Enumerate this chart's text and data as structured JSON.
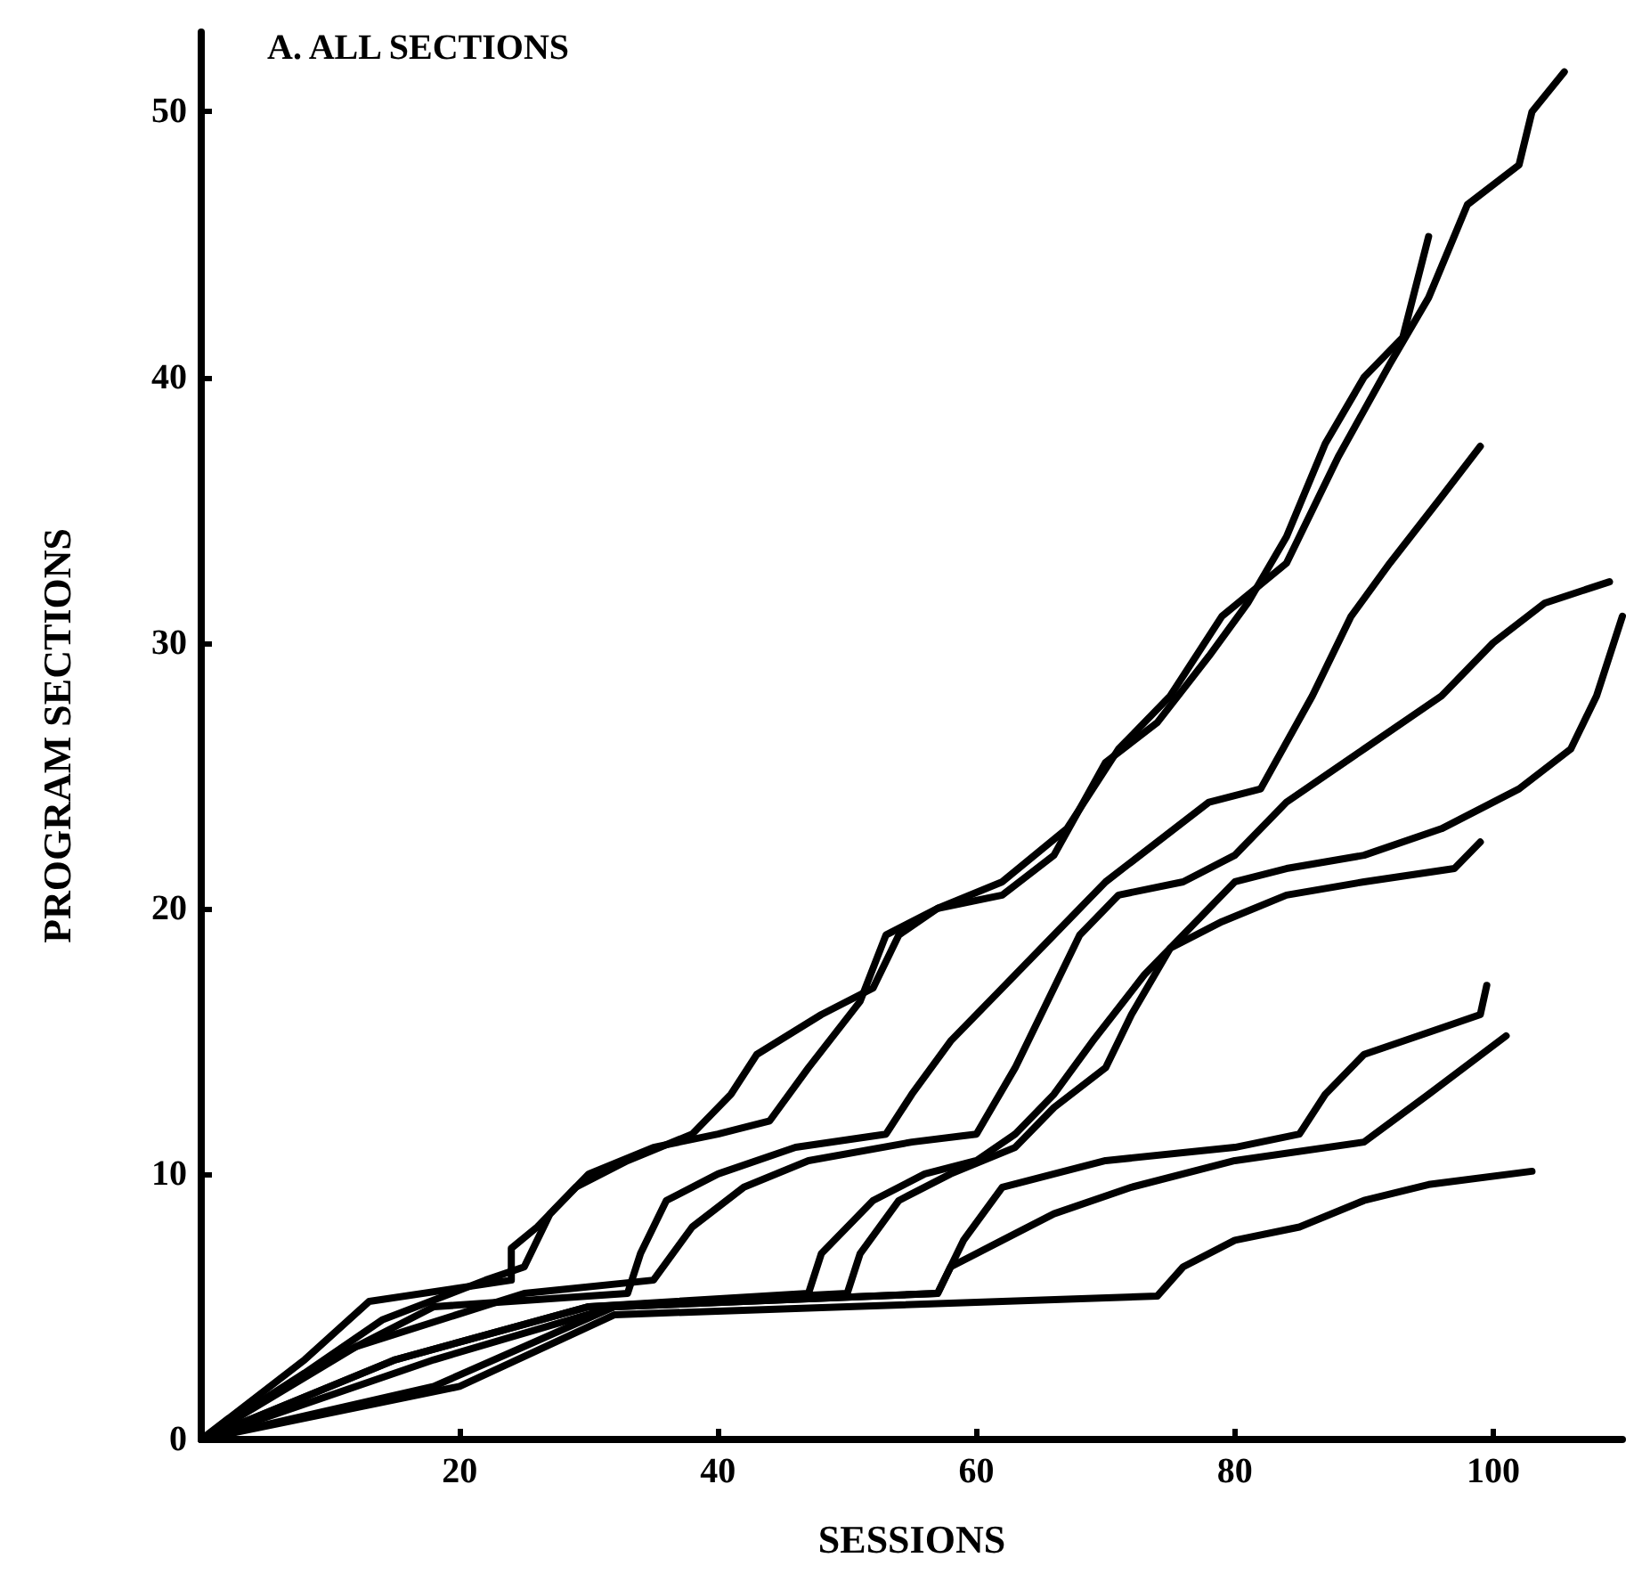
{
  "chart_data": {
    "type": "line",
    "title": "A. ALL SECTIONS",
    "xlabel": "SESSIONS",
    "ylabel": "PROGRAM SECTIONS",
    "xlim": [
      0,
      110
    ],
    "xticks": [
      20,
      40,
      60,
      80,
      100
    ],
    "ylim": [
      0,
      53
    ],
    "yticks": [
      0,
      10,
      20,
      30,
      40,
      50
    ],
    "grid": false,
    "marker": "none",
    "line_style": "solid",
    "series": [
      {
        "color": "#000000",
        "x": [
          0,
          8,
          13,
          24,
          24,
          26,
          29,
          33,
          38,
          41,
          43,
          48,
          52,
          54,
          57,
          62,
          67,
          71,
          75,
          79,
          84,
          88,
          92,
          95,
          98,
          102,
          103,
          105.5
        ],
        "values": [
          0,
          3,
          5.2,
          6,
          7.2,
          8,
          9.5,
          10.5,
          11.5,
          13,
          14.5,
          16,
          17,
          19,
          20,
          21,
          23,
          26,
          28,
          31,
          33,
          37,
          40.5,
          43,
          46.5,
          48,
          50,
          51.5
        ]
      },
      {
        "color": "#000000",
        "x": [
          0,
          8,
          14,
          22,
          25,
          27,
          30,
          35,
          40,
          44,
          47,
          51,
          53,
          57,
          62,
          66,
          70,
          74,
          78,
          81,
          84,
          87,
          90,
          93,
          95
        ],
        "values": [
          0,
          2.5,
          4.5,
          6,
          6.5,
          8.5,
          10,
          11,
          11.5,
          12,
          14,
          16.5,
          19,
          20,
          20.5,
          22,
          25.5,
          27,
          29.5,
          31.5,
          34,
          37.5,
          40,
          41.5,
          45.3
        ]
      },
      {
        "color": "#000000",
        "x": [
          0,
          10,
          18,
          33,
          34,
          36,
          40,
          46,
          53,
          55,
          58,
          62,
          66,
          70,
          74,
          78,
          82,
          86,
          89,
          92,
          96,
          99
        ],
        "values": [
          0,
          3,
          5,
          5.5,
          7,
          9,
          10,
          11,
          11.5,
          13,
          15,
          17,
          19,
          21,
          22.5,
          24,
          24.5,
          28,
          31,
          33,
          35.5,
          37.4
        ]
      },
      {
        "color": "#000000",
        "x": [
          0,
          12,
          25,
          35,
          38,
          42,
          47,
          55,
          60,
          63,
          66,
          68,
          71,
          76,
          80,
          84,
          90,
          96,
          100,
          104,
          109
        ],
        "values": [
          0,
          3.5,
          5.5,
          6,
          8,
          9.5,
          10.5,
          11.2,
          11.5,
          14,
          17,
          19,
          20.5,
          21,
          22,
          24,
          26,
          28,
          30,
          31.5,
          32.3
        ]
      },
      {
        "color": "#000000",
        "x": [
          0,
          15,
          30,
          47,
          48,
          52,
          56,
          60,
          63,
          66,
          69,
          73,
          76,
          80,
          84,
          90,
          96,
          102,
          106,
          108,
          110
        ],
        "values": [
          0,
          3,
          5,
          5.5,
          7,
          9,
          10,
          10.5,
          11.5,
          13,
          15,
          17.5,
          19,
          21,
          21.5,
          22,
          23,
          24.5,
          26,
          28,
          31
        ]
      },
      {
        "color": "#000000",
        "x": [
          0,
          15,
          30,
          50,
          51,
          54,
          58,
          63,
          66,
          70,
          72,
          75,
          79,
          84,
          90,
          97,
          99
        ],
        "values": [
          0,
          3,
          5,
          5.5,
          7,
          9,
          10,
          11,
          12.5,
          14,
          16,
          18.5,
          19.5,
          20.5,
          21,
          21.5,
          22.5
        ]
      },
      {
        "color": "#000000",
        "x": [
          0,
          18,
          32,
          57,
          59,
          62,
          70,
          80,
          85,
          87,
          90,
          96,
          99,
          99.5
        ],
        "values": [
          0,
          3,
          5,
          5.5,
          7.5,
          9.5,
          10.5,
          11,
          11.5,
          13,
          14.5,
          15.5,
          16,
          17.1
        ]
      },
      {
        "color": "#000000",
        "x": [
          0,
          18,
          32,
          57,
          58,
          62,
          66,
          72,
          80,
          90,
          95,
          101
        ],
        "values": [
          0,
          2,
          5,
          5.5,
          6.5,
          7.5,
          8.5,
          9.5,
          10.5,
          11.2,
          13,
          15.2
        ]
      },
      {
        "color": "#000000",
        "x": [
          0,
          20,
          32,
          50,
          74,
          76,
          80,
          85,
          90,
          95,
          103
        ],
        "values": [
          0,
          2,
          4.7,
          5,
          5.4,
          6.5,
          7.5,
          8,
          9,
          9.6,
          10.1
        ]
      }
    ]
  }
}
